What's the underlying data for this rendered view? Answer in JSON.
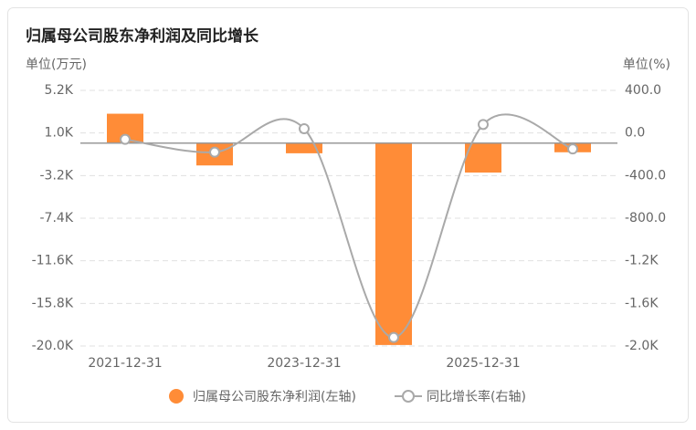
{
  "chart_data": {
    "type": "bar-line",
    "title": "归属母公司股东净利润及同比增长",
    "y_label": "单位(万元)",
    "y2_label": "单位(%)",
    "categories": [
      "2021-12-31",
      null,
      "2023-12-31",
      null,
      "2025-12-31",
      null
    ],
    "series": [
      {
        "name": "归属母公司股东净利润(左轴)",
        "type": "bar",
        "color": "#ff8c37",
        "values": [
          2900,
          -2200,
          -1000,
          -19900,
          -2900,
          -900
        ]
      },
      {
        "name": "同比增长率(右轴)",
        "type": "line",
        "axis": "y2",
        "color": "#a9a9a9",
        "values": [
          -60,
          -180,
          40,
          -1920,
          80,
          -150
        ]
      }
    ],
    "ylim": [
      -20000,
      5200
    ],
    "yticks": [
      {
        "value": 5200,
        "label": "5.2K"
      },
      {
        "value": 1000,
        "label": "1.0K"
      },
      {
        "value": -3200,
        "label": "-3.2K"
      },
      {
        "value": -7400,
        "label": "-7.4K"
      },
      {
        "value": -11600,
        "label": "-11.6K"
      },
      {
        "value": -15800,
        "label": "-15.8K"
      },
      {
        "value": -20000,
        "label": "-20.0K"
      }
    ],
    "y2lim": [
      -2000,
      400
    ],
    "y2ticks": [
      {
        "value": 400,
        "label": "400.0"
      },
      {
        "value": 0,
        "label": "0.0"
      },
      {
        "value": -400,
        "label": "-400.0"
      },
      {
        "value": -800,
        "label": "-800.0"
      },
      {
        "value": -1200,
        "label": "-1.2K"
      },
      {
        "value": -1600,
        "label": "-1.6K"
      },
      {
        "value": -2000,
        "label": "-2.0K"
      }
    ],
    "grid": true
  }
}
